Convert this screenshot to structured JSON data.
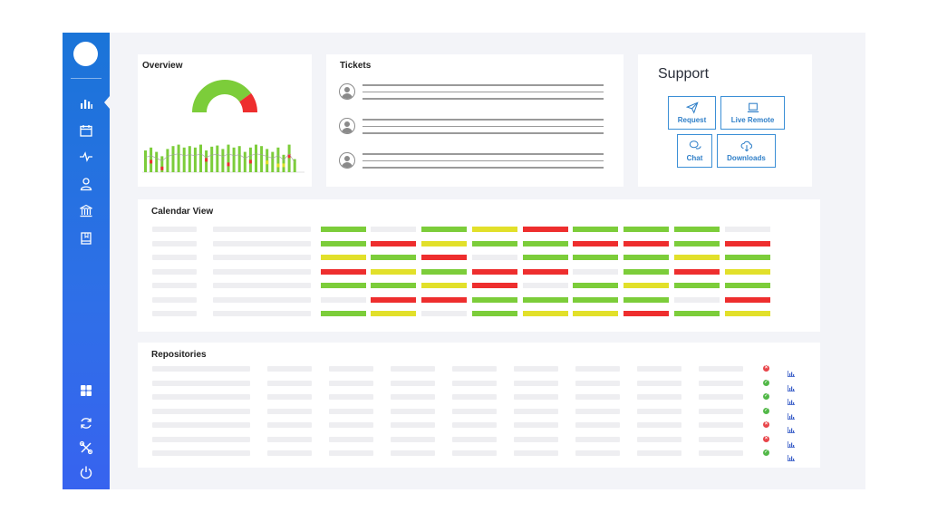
{
  "colors": {
    "green": "#7ccd3a",
    "yellow": "#e2e02a",
    "red": "#ee2e2e",
    "sidebar_top": "#1a74d8",
    "sidebar_bottom": "#3763ef"
  },
  "sidebar": {
    "nav_top": [
      {
        "name": "nav-analytics",
        "icon": "bar-chart-icon"
      },
      {
        "name": "nav-calendar",
        "icon": "calendar-icon"
      },
      {
        "name": "nav-activity",
        "icon": "pulse-icon"
      },
      {
        "name": "nav-user",
        "icon": "user-icon"
      },
      {
        "name": "nav-bank",
        "icon": "bank-icon"
      },
      {
        "name": "nav-book",
        "icon": "book-icon"
      }
    ],
    "nav_bottom": [
      {
        "name": "nav-dashboard",
        "icon": "grid-icon"
      },
      {
        "name": "nav-sync",
        "icon": "refresh-icon"
      },
      {
        "name": "nav-tools",
        "icon": "tools-icon"
      },
      {
        "name": "nav-power",
        "icon": "power-icon"
      }
    ]
  },
  "overview": {
    "title": "Overview",
    "gauge": {
      "value": 0.8,
      "colors": [
        "#7ccd3a",
        "#ee2e2e"
      ]
    },
    "bars": [
      {
        "value": 0.75,
        "marker": "none"
      },
      {
        "value": 0.85,
        "marker": "red"
      },
      {
        "value": 0.7,
        "marker": "none"
      },
      {
        "value": 0.55,
        "marker": "red"
      },
      {
        "value": 0.8,
        "marker": "none"
      },
      {
        "value": 0.9,
        "marker": "none"
      },
      {
        "value": 0.95,
        "marker": "none"
      },
      {
        "value": 0.85,
        "marker": "none"
      },
      {
        "value": 0.9,
        "marker": "none"
      },
      {
        "value": 0.85,
        "marker": "none"
      },
      {
        "value": 0.95,
        "marker": "none"
      },
      {
        "value": 0.75,
        "marker": "red"
      },
      {
        "value": 0.88,
        "marker": "none"
      },
      {
        "value": 0.92,
        "marker": "none"
      },
      {
        "value": 0.8,
        "marker": "none"
      },
      {
        "value": 0.95,
        "marker": "red"
      },
      {
        "value": 0.85,
        "marker": "none"
      },
      {
        "value": 0.9,
        "marker": "none"
      },
      {
        "value": 0.7,
        "marker": "none"
      },
      {
        "value": 0.85,
        "marker": "red"
      },
      {
        "value": 0.95,
        "marker": "none"
      },
      {
        "value": 0.9,
        "marker": "none"
      },
      {
        "value": 0.8,
        "marker": "yellow"
      },
      {
        "value": 0.7,
        "marker": "none"
      },
      {
        "value": 0.85,
        "marker": "yellow"
      },
      {
        "value": 0.6,
        "marker": "yellow"
      },
      {
        "value": 0.95,
        "marker": "red"
      },
      {
        "value": 0.45,
        "marker": "none"
      }
    ]
  },
  "tickets": {
    "title": "Tickets",
    "rows": [
      {
        "lines": 3
      },
      {
        "lines": 3
      },
      {
        "lines": 3
      }
    ]
  },
  "support": {
    "title": "Support",
    "buttons": [
      {
        "name": "request-button",
        "label": "Request",
        "icon": "send-icon"
      },
      {
        "name": "live-remote-button",
        "label": "Live Remote",
        "icon": "laptop-icon"
      },
      {
        "name": "chat-button",
        "label": "Chat",
        "icon": "chat-icon"
      },
      {
        "name": "downloads-button",
        "label": "Downloads",
        "icon": "cloud-download-icon"
      }
    ]
  },
  "calendar": {
    "title": "Calendar View",
    "rows": [
      [
        "green",
        "none",
        "green",
        "yellow",
        "red",
        "green",
        "green",
        "green",
        "none"
      ],
      [
        "green",
        "red",
        "yellow",
        "green",
        "green",
        "red",
        "red",
        "green",
        "red"
      ],
      [
        "yellow",
        "green",
        "red",
        "none",
        "green",
        "green",
        "green",
        "yellow",
        "green"
      ],
      [
        "red",
        "yellow",
        "green",
        "red",
        "red",
        "none",
        "green",
        "red",
        "yellow"
      ],
      [
        "green",
        "green",
        "yellow",
        "red",
        "none",
        "green",
        "yellow",
        "green",
        "green"
      ],
      [
        "none",
        "red",
        "red",
        "green",
        "green",
        "green",
        "green",
        "none",
        "red"
      ],
      [
        "green",
        "yellow",
        "none",
        "green",
        "yellow",
        "yellow",
        "red",
        "green",
        "yellow"
      ]
    ]
  },
  "repositories": {
    "title": "Repositories",
    "rows": [
      {
        "status": "fail"
      },
      {
        "status": "ok"
      },
      {
        "status": "ok"
      },
      {
        "status": "ok"
      },
      {
        "status": "fail"
      },
      {
        "status": "fail"
      },
      {
        "status": "ok"
      }
    ]
  }
}
